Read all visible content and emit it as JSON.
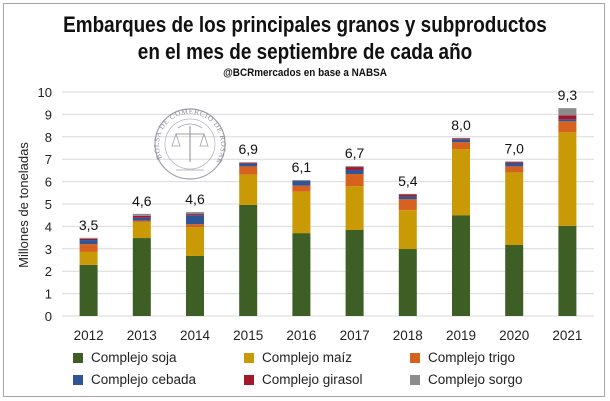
{
  "chart_data": {
    "type": "bar",
    "stacked": true,
    "title": "Embarques de los principales granos y subproductos",
    "title_line2": "en el mes de septiembre de cada año",
    "subtitle": "@BCRmercados  en base a NABSA",
    "xlabel": "",
    "ylabel": "Millones de toneladas",
    "ylim": [
      0,
      10
    ],
    "yticks": [
      0,
      1,
      2,
      3,
      4,
      5,
      6,
      7,
      8,
      9,
      10
    ],
    "grid": true,
    "legend_position": "bottom",
    "categories": [
      "2012",
      "2013",
      "2014",
      "2015",
      "2016",
      "2017",
      "2018",
      "2019",
      "2020",
      "2021"
    ],
    "totals_labels": [
      "3,5",
      "4,6",
      "4,6",
      "6,9",
      "6,1",
      "6,7",
      "5,4",
      "8,0",
      "7,0",
      "9,3"
    ],
    "series": [
      {
        "name": "Complejo soja",
        "color": "#3d5f25",
        "values": [
          2.28,
          3.48,
          2.68,
          4.96,
          3.7,
          3.84,
          2.99,
          4.5,
          3.17,
          4.02
        ]
      },
      {
        "name": "Complejo maíz",
        "color": "#c99a06",
        "values": [
          0.58,
          0.72,
          1.29,
          1.36,
          1.85,
          1.96,
          1.73,
          2.95,
          3.24,
          4.18
        ]
      },
      {
        "name": "Complejo trigo",
        "color": "#d6621e",
        "values": [
          0.35,
          0.06,
          0.13,
          0.36,
          0.27,
          0.54,
          0.49,
          0.31,
          0.27,
          0.49
        ]
      },
      {
        "name": "Complejo cebada",
        "color": "#2f5597",
        "values": [
          0.18,
          0.13,
          0.4,
          0.12,
          0.22,
          0.18,
          0.13,
          0.13,
          0.16,
          0.09
        ]
      },
      {
        "name": "Complejo girasol",
        "color": "#a3172a",
        "values": [
          0.05,
          0.08,
          0.05,
          0.04,
          0.0,
          0.13,
          0.09,
          0.04,
          0.05,
          0.18
        ]
      },
      {
        "name": "Complejo sorgo",
        "color": "#8c8c8c",
        "values": [
          0.05,
          0.09,
          0.09,
          0.03,
          0.03,
          0.04,
          0.02,
          0.02,
          0.0,
          0.32
        ]
      }
    ]
  },
  "watermark": {
    "text": "BOLSA DE COMERCIO DE ROSARIO",
    "icon": "caduceus-scales-seal-icon"
  }
}
